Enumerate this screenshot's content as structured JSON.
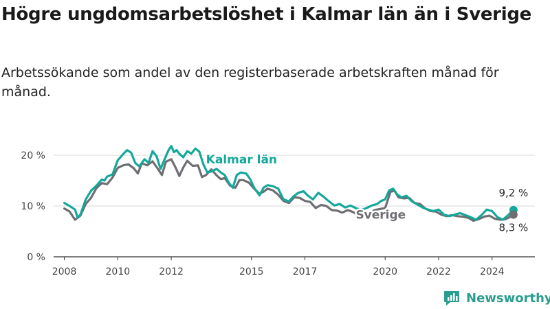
{
  "title": "Högre ungdomsarbetslöshet i Kalmar län än i Sverige",
  "subtitle": "Arbetssökande som andel av den registerbaserade arbetskraften månad för månad.",
  "brand": {
    "name": "Newsworthy"
  },
  "colors": {
    "kalmar": "#14a89a",
    "sverige": "#6e6e73",
    "grid": "#d9d9d9",
    "brand": "#2a9d8f"
  },
  "chart_data": {
    "type": "line",
    "title": "Högre ungdomsarbetslöshet i Kalmar län än i Sverige",
    "subtitle": "Arbetssökande som andel av den registerbaserade arbetskraften månad för månad.",
    "xlabel": "",
    "ylabel": "",
    "ylim": [
      0,
      25
    ],
    "xlim": [
      2007.6,
      2025.6
    ],
    "grid": true,
    "yticks": [
      0,
      10,
      20
    ],
    "ytick_labels": [
      "0 %",
      "10 %",
      "20 %"
    ],
    "xticks": [
      2008,
      2010,
      2012,
      2015,
      2017,
      2020,
      2022,
      2024
    ],
    "xtick_labels": [
      "2008",
      "2010",
      "2012",
      "2015",
      "2017",
      "2020",
      "2022",
      "2024"
    ],
    "series": [
      {
        "name": "Kalmar län",
        "color": "#14a89a",
        "end_label": "9,2 %",
        "points": [
          [
            2008.0,
            10.6
          ],
          [
            2008.2,
            10.0
          ],
          [
            2008.4,
            9.3
          ],
          [
            2008.5,
            7.7
          ],
          [
            2008.6,
            8.3
          ],
          [
            2008.8,
            11.3
          ],
          [
            2009.0,
            13.0
          ],
          [
            2009.2,
            14.0
          ],
          [
            2009.4,
            15.2
          ],
          [
            2009.5,
            15.0
          ],
          [
            2009.6,
            15.8
          ],
          [
            2009.8,
            16.2
          ],
          [
            2010.0,
            19.0
          ],
          [
            2010.2,
            20.2
          ],
          [
            2010.35,
            21.0
          ],
          [
            2010.5,
            20.5
          ],
          [
            2010.65,
            18.5
          ],
          [
            2010.8,
            17.8
          ],
          [
            2011.0,
            19.2
          ],
          [
            2011.15,
            18.5
          ],
          [
            2011.3,
            20.8
          ],
          [
            2011.45,
            19.8
          ],
          [
            2011.6,
            17.3
          ],
          [
            2011.75,
            19.2
          ],
          [
            2011.9,
            21.0
          ],
          [
            2012.0,
            21.8
          ],
          [
            2012.1,
            20.6
          ],
          [
            2012.2,
            21.0
          ],
          [
            2012.3,
            20.3
          ],
          [
            2012.45,
            19.6
          ],
          [
            2012.6,
            20.8
          ],
          [
            2012.75,
            20.3
          ],
          [
            2012.9,
            21.3
          ],
          [
            2013.05,
            20.7
          ],
          [
            2013.2,
            18.2
          ],
          [
            2013.35,
            16.6
          ],
          [
            2013.5,
            16.8
          ],
          [
            2013.7,
            17.3
          ],
          [
            2013.85,
            16.6
          ],
          [
            2014.0,
            16.1
          ],
          [
            2014.15,
            14.6
          ],
          [
            2014.3,
            13.6
          ],
          [
            2014.45,
            16.1
          ],
          [
            2014.6,
            16.6
          ],
          [
            2014.8,
            16.4
          ],
          [
            2014.95,
            15.3
          ],
          [
            2015.1,
            13.6
          ],
          [
            2015.3,
            12.1
          ],
          [
            2015.45,
            13.6
          ],
          [
            2015.6,
            14.1
          ],
          [
            2015.8,
            13.9
          ],
          [
            2016.0,
            13.4
          ],
          [
            2016.2,
            11.3
          ],
          [
            2016.4,
            10.9
          ],
          [
            2016.55,
            11.8
          ],
          [
            2016.75,
            12.6
          ],
          [
            2016.95,
            12.9
          ],
          [
            2017.1,
            12.1
          ],
          [
            2017.3,
            11.3
          ],
          [
            2017.5,
            12.6
          ],
          [
            2017.7,
            11.8
          ],
          [
            2017.9,
            10.9
          ],
          [
            2018.1,
            10.1
          ],
          [
            2018.3,
            10.4
          ],
          [
            2018.5,
            9.7
          ],
          [
            2018.7,
            10.1
          ],
          [
            2018.9,
            9.6
          ],
          [
            2019.1,
            9.2
          ],
          [
            2019.3,
            9.6
          ],
          [
            2019.5,
            10.1
          ],
          [
            2019.7,
            10.4
          ],
          [
            2019.85,
            11.0
          ],
          [
            2020.0,
            11.3
          ],
          [
            2020.15,
            13.1
          ],
          [
            2020.3,
            13.4
          ],
          [
            2020.45,
            12.3
          ],
          [
            2020.6,
            11.7
          ],
          [
            2020.8,
            12.0
          ],
          [
            2021.0,
            10.9
          ],
          [
            2021.2,
            10.3
          ],
          [
            2021.4,
            9.7
          ],
          [
            2021.6,
            9.3
          ],
          [
            2021.8,
            9.0
          ],
          [
            2022.0,
            9.3
          ],
          [
            2022.2,
            8.3
          ],
          [
            2022.4,
            8.0
          ],
          [
            2022.6,
            8.3
          ],
          [
            2022.8,
            8.6
          ],
          [
            2023.0,
            8.2
          ],
          [
            2023.2,
            7.8
          ],
          [
            2023.4,
            7.3
          ],
          [
            2023.6,
            8.2
          ],
          [
            2023.8,
            9.3
          ],
          [
            2024.0,
            9.0
          ],
          [
            2024.2,
            7.8
          ],
          [
            2024.4,
            7.3
          ],
          [
            2024.6,
            8.2
          ],
          [
            2024.8,
            9.2
          ]
        ]
      },
      {
        "name": "Sverige",
        "color": "#6e6e73",
        "end_label": "8,3 %",
        "points": [
          [
            2008.0,
            9.5
          ],
          [
            2008.2,
            8.9
          ],
          [
            2008.4,
            7.3
          ],
          [
            2008.6,
            8.1
          ],
          [
            2008.8,
            10.4
          ],
          [
            2009.0,
            11.6
          ],
          [
            2009.2,
            13.5
          ],
          [
            2009.4,
            14.5
          ],
          [
            2009.6,
            14.3
          ],
          [
            2009.8,
            15.6
          ],
          [
            2010.0,
            17.5
          ],
          [
            2010.2,
            18.0
          ],
          [
            2010.4,
            18.2
          ],
          [
            2010.6,
            17.4
          ],
          [
            2010.75,
            16.4
          ],
          [
            2010.9,
            18.4
          ],
          [
            2011.1,
            18.0
          ],
          [
            2011.3,
            18.8
          ],
          [
            2011.5,
            17.3
          ],
          [
            2011.65,
            16.1
          ],
          [
            2011.8,
            18.7
          ],
          [
            2012.0,
            19.2
          ],
          [
            2012.15,
            17.7
          ],
          [
            2012.3,
            15.9
          ],
          [
            2012.45,
            17.6
          ],
          [
            2012.6,
            18.9
          ],
          [
            2012.8,
            17.9
          ],
          [
            2013.0,
            18.0
          ],
          [
            2013.15,
            15.7
          ],
          [
            2013.3,
            16.1
          ],
          [
            2013.5,
            17.2
          ],
          [
            2013.7,
            16.0
          ],
          [
            2013.85,
            15.3
          ],
          [
            2014.0,
            15.5
          ],
          [
            2014.2,
            14.0
          ],
          [
            2014.4,
            13.6
          ],
          [
            2014.55,
            15.1
          ],
          [
            2014.7,
            15.1
          ],
          [
            2014.9,
            14.6
          ],
          [
            2015.1,
            13.4
          ],
          [
            2015.3,
            12.4
          ],
          [
            2015.45,
            12.8
          ],
          [
            2015.6,
            13.4
          ],
          [
            2015.8,
            13.1
          ],
          [
            2016.0,
            12.2
          ],
          [
            2016.2,
            11.0
          ],
          [
            2016.4,
            10.6
          ],
          [
            2016.6,
            11.7
          ],
          [
            2016.8,
            11.6
          ],
          [
            2017.0,
            11.0
          ],
          [
            2017.2,
            10.8
          ],
          [
            2017.4,
            9.6
          ],
          [
            2017.6,
            10.2
          ],
          [
            2017.8,
            10.0
          ],
          [
            2018.0,
            9.2
          ],
          [
            2018.2,
            9.1
          ],
          [
            2018.4,
            8.7
          ],
          [
            2018.6,
            9.2
          ],
          [
            2018.8,
            8.8
          ],
          [
            2019.0,
            8.2
          ],
          [
            2019.2,
            8.4
          ],
          [
            2019.4,
            8.2
          ],
          [
            2019.6,
            9.2
          ],
          [
            2019.8,
            9.4
          ],
          [
            2020.0,
            9.6
          ],
          [
            2020.2,
            12.8
          ],
          [
            2020.35,
            13.0
          ],
          [
            2020.5,
            11.7
          ],
          [
            2020.7,
            11.5
          ],
          [
            2020.9,
            11.6
          ],
          [
            2021.1,
            10.6
          ],
          [
            2021.3,
            10.4
          ],
          [
            2021.5,
            9.5
          ],
          [
            2021.7,
            9.0
          ],
          [
            2021.9,
            8.9
          ],
          [
            2022.1,
            8.3
          ],
          [
            2022.3,
            8.0
          ],
          [
            2022.5,
            8.2
          ],
          [
            2022.7,
            8.0
          ],
          [
            2022.9,
            7.9
          ],
          [
            2023.1,
            7.7
          ],
          [
            2023.3,
            7.1
          ],
          [
            2023.5,
            7.4
          ],
          [
            2023.7,
            7.9
          ],
          [
            2023.9,
            8.1
          ],
          [
            2024.1,
            7.5
          ],
          [
            2024.3,
            7.3
          ],
          [
            2024.5,
            7.4
          ],
          [
            2024.7,
            7.9
          ],
          [
            2024.8,
            8.3
          ]
        ]
      }
    ],
    "annotations": [
      {
        "text": "Kalmar län",
        "series": "Kalmar län",
        "x": 2013.3,
        "y": 18.4
      },
      {
        "text": "Sverige",
        "series": "Sverige",
        "x": 2018.9,
        "y": 7.5
      }
    ]
  }
}
